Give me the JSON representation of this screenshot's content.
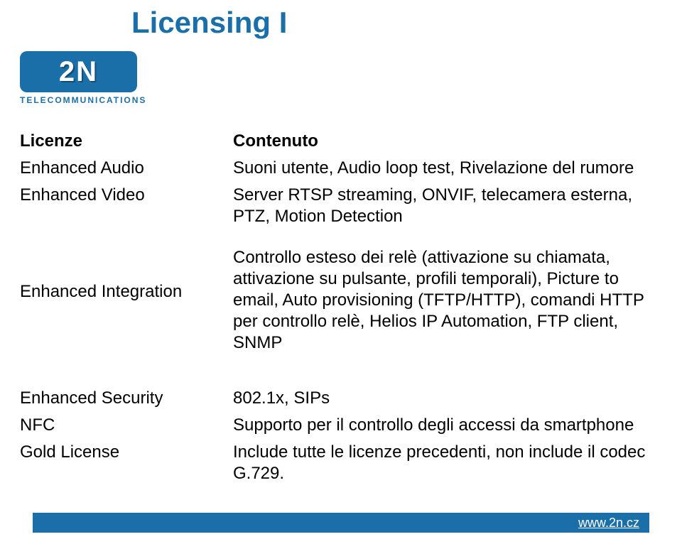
{
  "page_title": "Licensing I",
  "title_color": "#1b6fa8",
  "brand": {
    "logo_text": "2N",
    "tagline": "TELECOMMUNICATIONS",
    "logo_bg": "#1b6fa8",
    "logo_fg": "#ffffff"
  },
  "table": {
    "header": {
      "col1": "Licenze",
      "col2": "Contenuto"
    },
    "rows": [
      {
        "label": "Enhanced Audio",
        "value": "Suoni utente, Audio loop test, Rivelazione del rumore"
      },
      {
        "label": "Enhanced Video",
        "value": "Server RTSP streaming, ONVIF, telecamera esterna, PTZ, Motion Detection"
      },
      {
        "label": "Enhanced Integration",
        "value": "Controllo esteso dei relè (attivazione su chiamata, attivazione su pulsante, profili temporali), Picture to email, Auto provisioning (TFTP/HTTP), comandi HTTP per controllo relè, Helios IP Automation, FTP client, SNMP"
      },
      {
        "label": "Enhanced Security",
        "value": "802.1x, SIPs"
      },
      {
        "label": "NFC",
        "value": "Supporto per il controllo degli accessi da smartphone"
      },
      {
        "label": "Gold License",
        "value": "Include tutte le licenze precedenti, non include il codec G.729."
      }
    ]
  },
  "footer": {
    "url": "www.2n.cz",
    "bg": "#1b6fa8",
    "fg": "#ffffff"
  },
  "typography": {
    "title_fontsize": 42,
    "body_fontsize": 24,
    "font_family": "Arial"
  }
}
